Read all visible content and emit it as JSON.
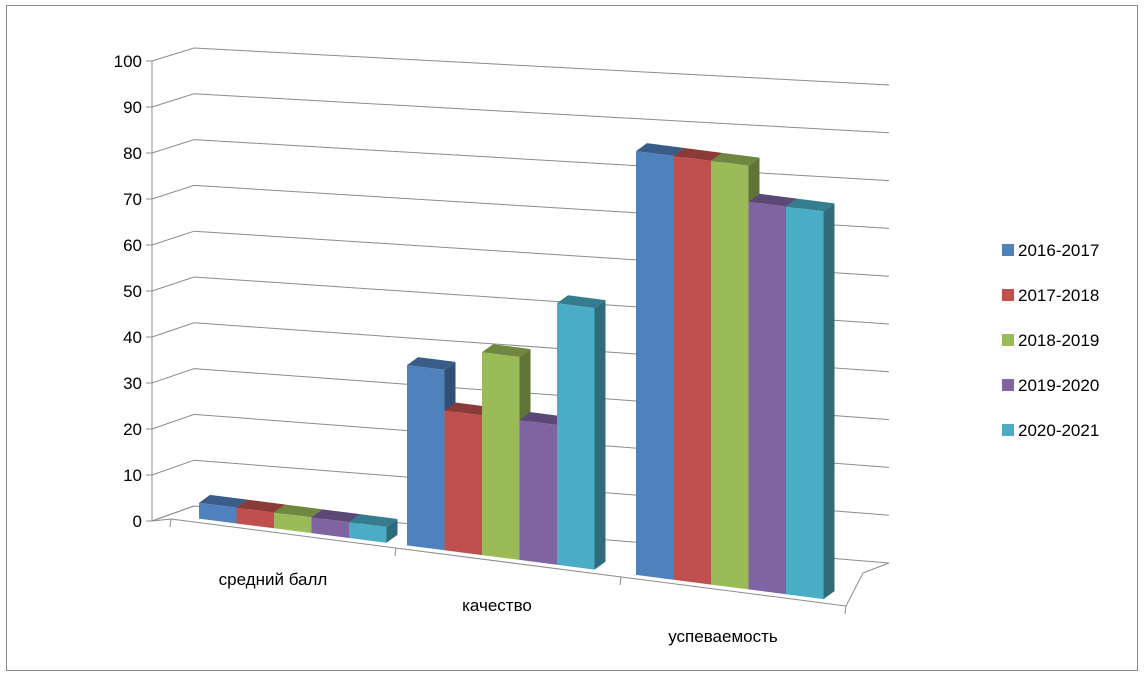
{
  "chart_data": {
    "type": "bar",
    "categories": [
      "средний балл",
      "качество",
      "успеваемость"
    ],
    "series": [
      {
        "name": "2016-2017",
        "values": [
          3.5,
          40,
          94
        ],
        "color": "#4F81BD"
      },
      {
        "name": "2017-2018",
        "values": [
          3.5,
          31,
          94
        ],
        "color": "#C0504D"
      },
      {
        "name": "2018-2019",
        "values": [
          3.5,
          45,
          94
        ],
        "color": "#9BBB59"
      },
      {
        "name": "2019-2020",
        "values": [
          3.5,
          31,
          86
        ],
        "color": "#8064A2"
      },
      {
        "name": "2020-2021",
        "values": [
          3.5,
          58,
          86
        ],
        "color": "#4BACC6"
      }
    ],
    "y_ticks": [
      "0",
      "10",
      "20",
      "30",
      "40",
      "50",
      "60",
      "70",
      "80",
      "90",
      "100"
    ],
    "ylim": [
      0,
      100
    ],
    "grid": true,
    "legend_position": "right",
    "style": "3d-clustered-column"
  }
}
